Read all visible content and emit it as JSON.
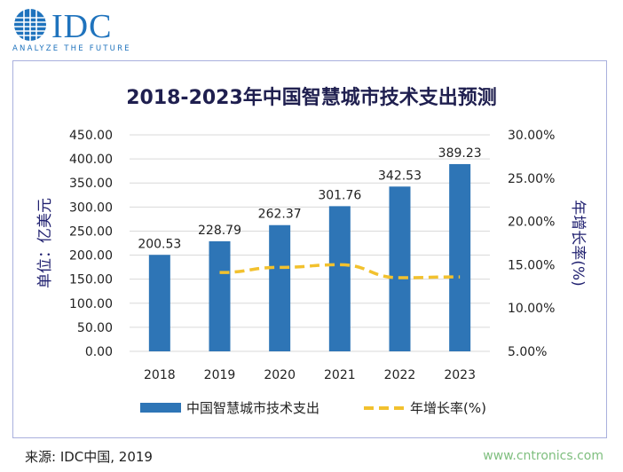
{
  "brand": {
    "logo_text": "IDC",
    "tagline": "ANALYZE THE FUTURE",
    "color": "#1f73bd"
  },
  "footer": {
    "source": "来源: IDC中国, 2019",
    "watermark": "www.cntronics.com"
  },
  "chart_data": {
    "type": "bar",
    "title": "2018-2023年中国智慧城市技术支出预测",
    "categories": [
      "2018",
      "2019",
      "2020",
      "2021",
      "2022",
      "2023"
    ],
    "ylabel": "单位：亿美元",
    "y2label": "年增长率(%)",
    "ylim": [
      0,
      450
    ],
    "y2lim": [
      5,
      30
    ],
    "y_ticks": [
      "0.00",
      "50.00",
      "100.00",
      "150.00",
      "200.00",
      "250.00",
      "300.00",
      "350.00",
      "400.00",
      "450.00"
    ],
    "y2_ticks": [
      "5.00%",
      "10.00%",
      "15.00%",
      "20.00%",
      "25.00%",
      "30.00%"
    ],
    "grid": true,
    "legend_position": "bottom",
    "series": [
      {
        "name": "中国智慧城市技术支出",
        "kind": "bar",
        "axis": "left",
        "color": "#2e75b6",
        "values": [
          200.53,
          228.79,
          262.37,
          301.76,
          342.53,
          389.23
        ],
        "labels": [
          "200.53",
          "228.79",
          "262.37",
          "301.76",
          "342.53",
          "389.23"
        ]
      },
      {
        "name": "年增长率(%)",
        "kind": "line",
        "axis": "right",
        "style": "dashed",
        "color": "#f2c12e",
        "values": [
          null,
          14.1,
          14.7,
          15.0,
          13.5,
          13.6
        ]
      }
    ]
  }
}
